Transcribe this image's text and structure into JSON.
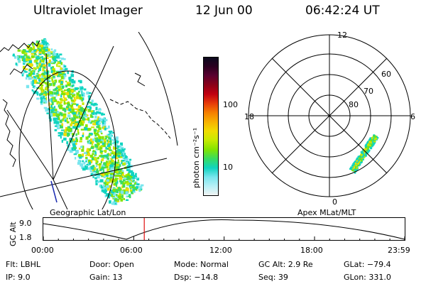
{
  "header": {
    "instrument": "Ultraviolet Imager",
    "date": "12 Jun 00",
    "time": "06:42:24 UT"
  },
  "colorbar": {
    "unit_label": "photon cm⁻²s⁻¹",
    "tick_labels": [
      "100",
      "10"
    ],
    "colors": [
      "#0a0a1e",
      "#2a0020",
      "#5a0030",
      "#8a0018",
      "#c00010",
      "#e63a0a",
      "#f57e00",
      "#f7b100",
      "#f0dc00",
      "#c6ea00",
      "#82e400",
      "#38dc60",
      "#10d4c0",
      "#7ae6ee",
      "#b8f0f6",
      "#f4f4f4"
    ]
  },
  "left_map": {
    "caption": "Geographic Lat/Lon"
  },
  "polar_plot": {
    "caption": "Apex MLat/MLT",
    "mlt_labels": [
      "12",
      "6",
      "0",
      "18"
    ],
    "lat_labels": [
      "60",
      "70",
      "80"
    ]
  },
  "timeline": {
    "axis_label": "GC Alt",
    "y_ticks": [
      "9.0",
      "1.8"
    ],
    "x_ticks": [
      "00:00",
      "06:00",
      "12:00",
      "18:00",
      "23:59"
    ],
    "current_marker_hours": 6.7
  },
  "info": {
    "filter": "Flt:  LBHL",
    "ip": "IP:  9.0",
    "door": "Door:  Open",
    "gain": "Gain:  13",
    "mode": "Mode:  Normal",
    "dsp": "Dsp:   −14.8",
    "gc_alt": "GC Alt:  2.9 Re",
    "seq": "Seq:  39",
    "glat": "GLat:  −79.4",
    "glon": "GLon:  331.0"
  }
}
